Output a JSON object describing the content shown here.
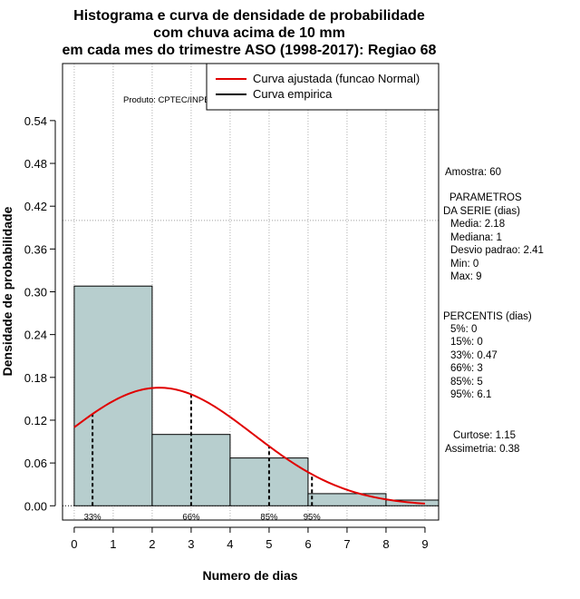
{
  "chart_data": {
    "type": "bar",
    "title_lines": [
      "Histograma e curva de densidade de probabilidade",
      "com chuva acima de 10 mm",
      "em cada mes do trimestre ASO (1998-2017): Regiao 68"
    ],
    "xlabel": "Numero de dias",
    "ylabel": "Densidade de probabilidade",
    "xlim": [
      -0.3,
      9.35
    ],
    "ylim": [
      -0.02,
      0.62
    ],
    "xticks": [
      0,
      1,
      2,
      3,
      4,
      5,
      6,
      7,
      8,
      9
    ],
    "yticks": [
      0.0,
      0.06,
      0.12,
      0.18,
      0.24,
      0.3,
      0.36,
      0.42,
      0.48,
      0.54
    ],
    "ytick_labels": [
      "0.00",
      "0.06",
      "0.12",
      "0.18",
      "0.24",
      "0.30",
      "0.36",
      "0.42",
      "0.48",
      "0.54"
    ],
    "bins": [
      {
        "from": 0,
        "to": 2,
        "density": 0.308
      },
      {
        "from": 2,
        "to": 4,
        "density": 0.1
      },
      {
        "from": 4,
        "to": 6,
        "density": 0.067
      },
      {
        "from": 6,
        "to": 8,
        "density": 0.017
      },
      {
        "from": 8,
        "to": 10,
        "density": 0.008
      }
    ],
    "bar_color": "#b7cece",
    "curve_color": "#e00000",
    "normal_fit": {
      "mean": 2.18,
      "sd": 2.41,
      "x_from": 0,
      "x_to": 9
    },
    "reference_line_y": 0.4,
    "percentile_markers": [
      {
        "x": 0.47,
        "label": "33%"
      },
      {
        "x": 3,
        "label": "66%"
      },
      {
        "x": 5,
        "label": "85%"
      },
      {
        "x": 6.1,
        "label": "95%"
      }
    ],
    "legend": {
      "placement": "top-right",
      "entries": [
        {
          "label": "Curva ajustada (funcao Normal)",
          "color": "#e00000"
        },
        {
          "label": "Curva empirica",
          "color": "#000000"
        }
      ]
    },
    "product_label": "Produto: CPTEC/INPE",
    "stats": {
      "amostra": "Amostra: 60",
      "param_header_1": "PARAMETROS",
      "param_header_2": "DA SERIE (dias)",
      "media": "Media: 2.18",
      "mediana": "Mediana: 1",
      "desvio": "Desvio padrao: 2.41",
      "min": "Min: 0",
      "max": "Max: 9",
      "perc_header": "PERCENTIS (dias)",
      "p5": "5%: 0",
      "p15": "15%: 0",
      "p33": "33%: 0.47",
      "p66": "66%: 3",
      "p85": "85%: 5",
      "p95": "95%: 6.1",
      "curtose": "Curtose: 1.15",
      "assimetria": "Assimetria: 0.38"
    }
  }
}
